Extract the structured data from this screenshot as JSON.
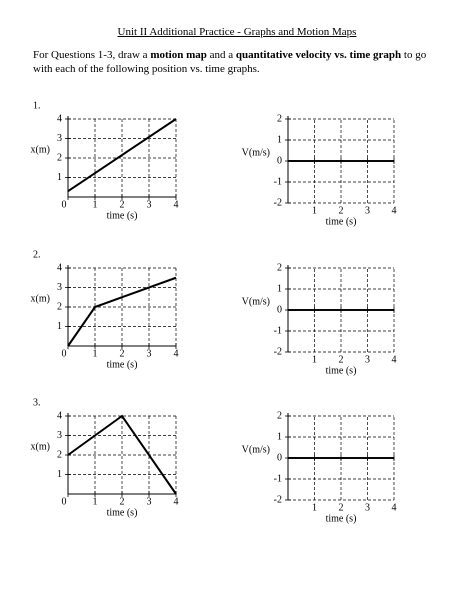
{
  "title": "Unit II Additional Practice - Graphs and Motion Maps",
  "instructions": [
    "For Questions 1-3, draw a ",
    "motion map",
    " and a ",
    "quantitative velocity vs. time graph",
    " to go with each of the following position vs. time graphs."
  ],
  "questions": [
    {
      "number": "1.",
      "position_graph": {
        "type": "line",
        "ylabel": "x(m)",
        "xlabel": "time (s)",
        "x": [
          0,
          4
        ],
        "values": [
          0.3,
          4
        ],
        "xlim": [
          0,
          4
        ],
        "ylim": [
          0,
          4
        ],
        "xticks": [
          0,
          1,
          2,
          3,
          4
        ],
        "yticks": [
          1,
          2,
          3,
          4
        ],
        "grid": true
      },
      "velocity_graph": {
        "type": "line",
        "ylabel": "V(m/s)",
        "xlabel": "time (s)",
        "xlim": [
          0,
          4
        ],
        "ylim": [
          -2,
          2
        ],
        "xticks": [
          1,
          2,
          3,
          4
        ],
        "yticks": [
          -2,
          -1,
          0,
          1,
          2
        ],
        "grid": true
      }
    },
    {
      "number": "2.",
      "position_graph": {
        "type": "line",
        "ylabel": "x(m)",
        "xlabel": "time (s)",
        "x": [
          0,
          1,
          4
        ],
        "values": [
          0,
          2,
          3.5
        ],
        "xlim": [
          0,
          4
        ],
        "ylim": [
          0,
          4
        ],
        "xticks": [
          0,
          1,
          2,
          3,
          4
        ],
        "yticks": [
          1,
          2,
          3,
          4
        ],
        "grid": true
      },
      "velocity_graph": {
        "type": "line",
        "ylabel": "V(m/s)",
        "xlabel": "time (s)",
        "xlim": [
          0,
          4
        ],
        "ylim": [
          -2,
          2
        ],
        "xticks": [
          1,
          2,
          3,
          4
        ],
        "yticks": [
          -2,
          -1,
          0,
          1,
          2
        ],
        "grid": true
      }
    },
    {
      "number": "3.",
      "position_graph": {
        "type": "line",
        "ylabel": "x(m)",
        "xlabel": "time (s)",
        "x": [
          0,
          2,
          4
        ],
        "values": [
          2,
          4,
          0
        ],
        "xlim": [
          0,
          4
        ],
        "ylim": [
          0,
          4
        ],
        "xticks": [
          0,
          1,
          2,
          3,
          4
        ],
        "yticks": [
          1,
          2,
          3,
          4
        ],
        "grid": true
      },
      "velocity_graph": {
        "type": "line",
        "ylabel": "V(m/s)",
        "xlabel": "time (s)",
        "xlim": [
          0,
          4
        ],
        "ylim": [
          -2,
          2
        ],
        "xticks": [
          1,
          2,
          3,
          4
        ],
        "yticks": [
          -2,
          -1,
          0,
          1,
          2
        ],
        "grid": true
      }
    }
  ]
}
